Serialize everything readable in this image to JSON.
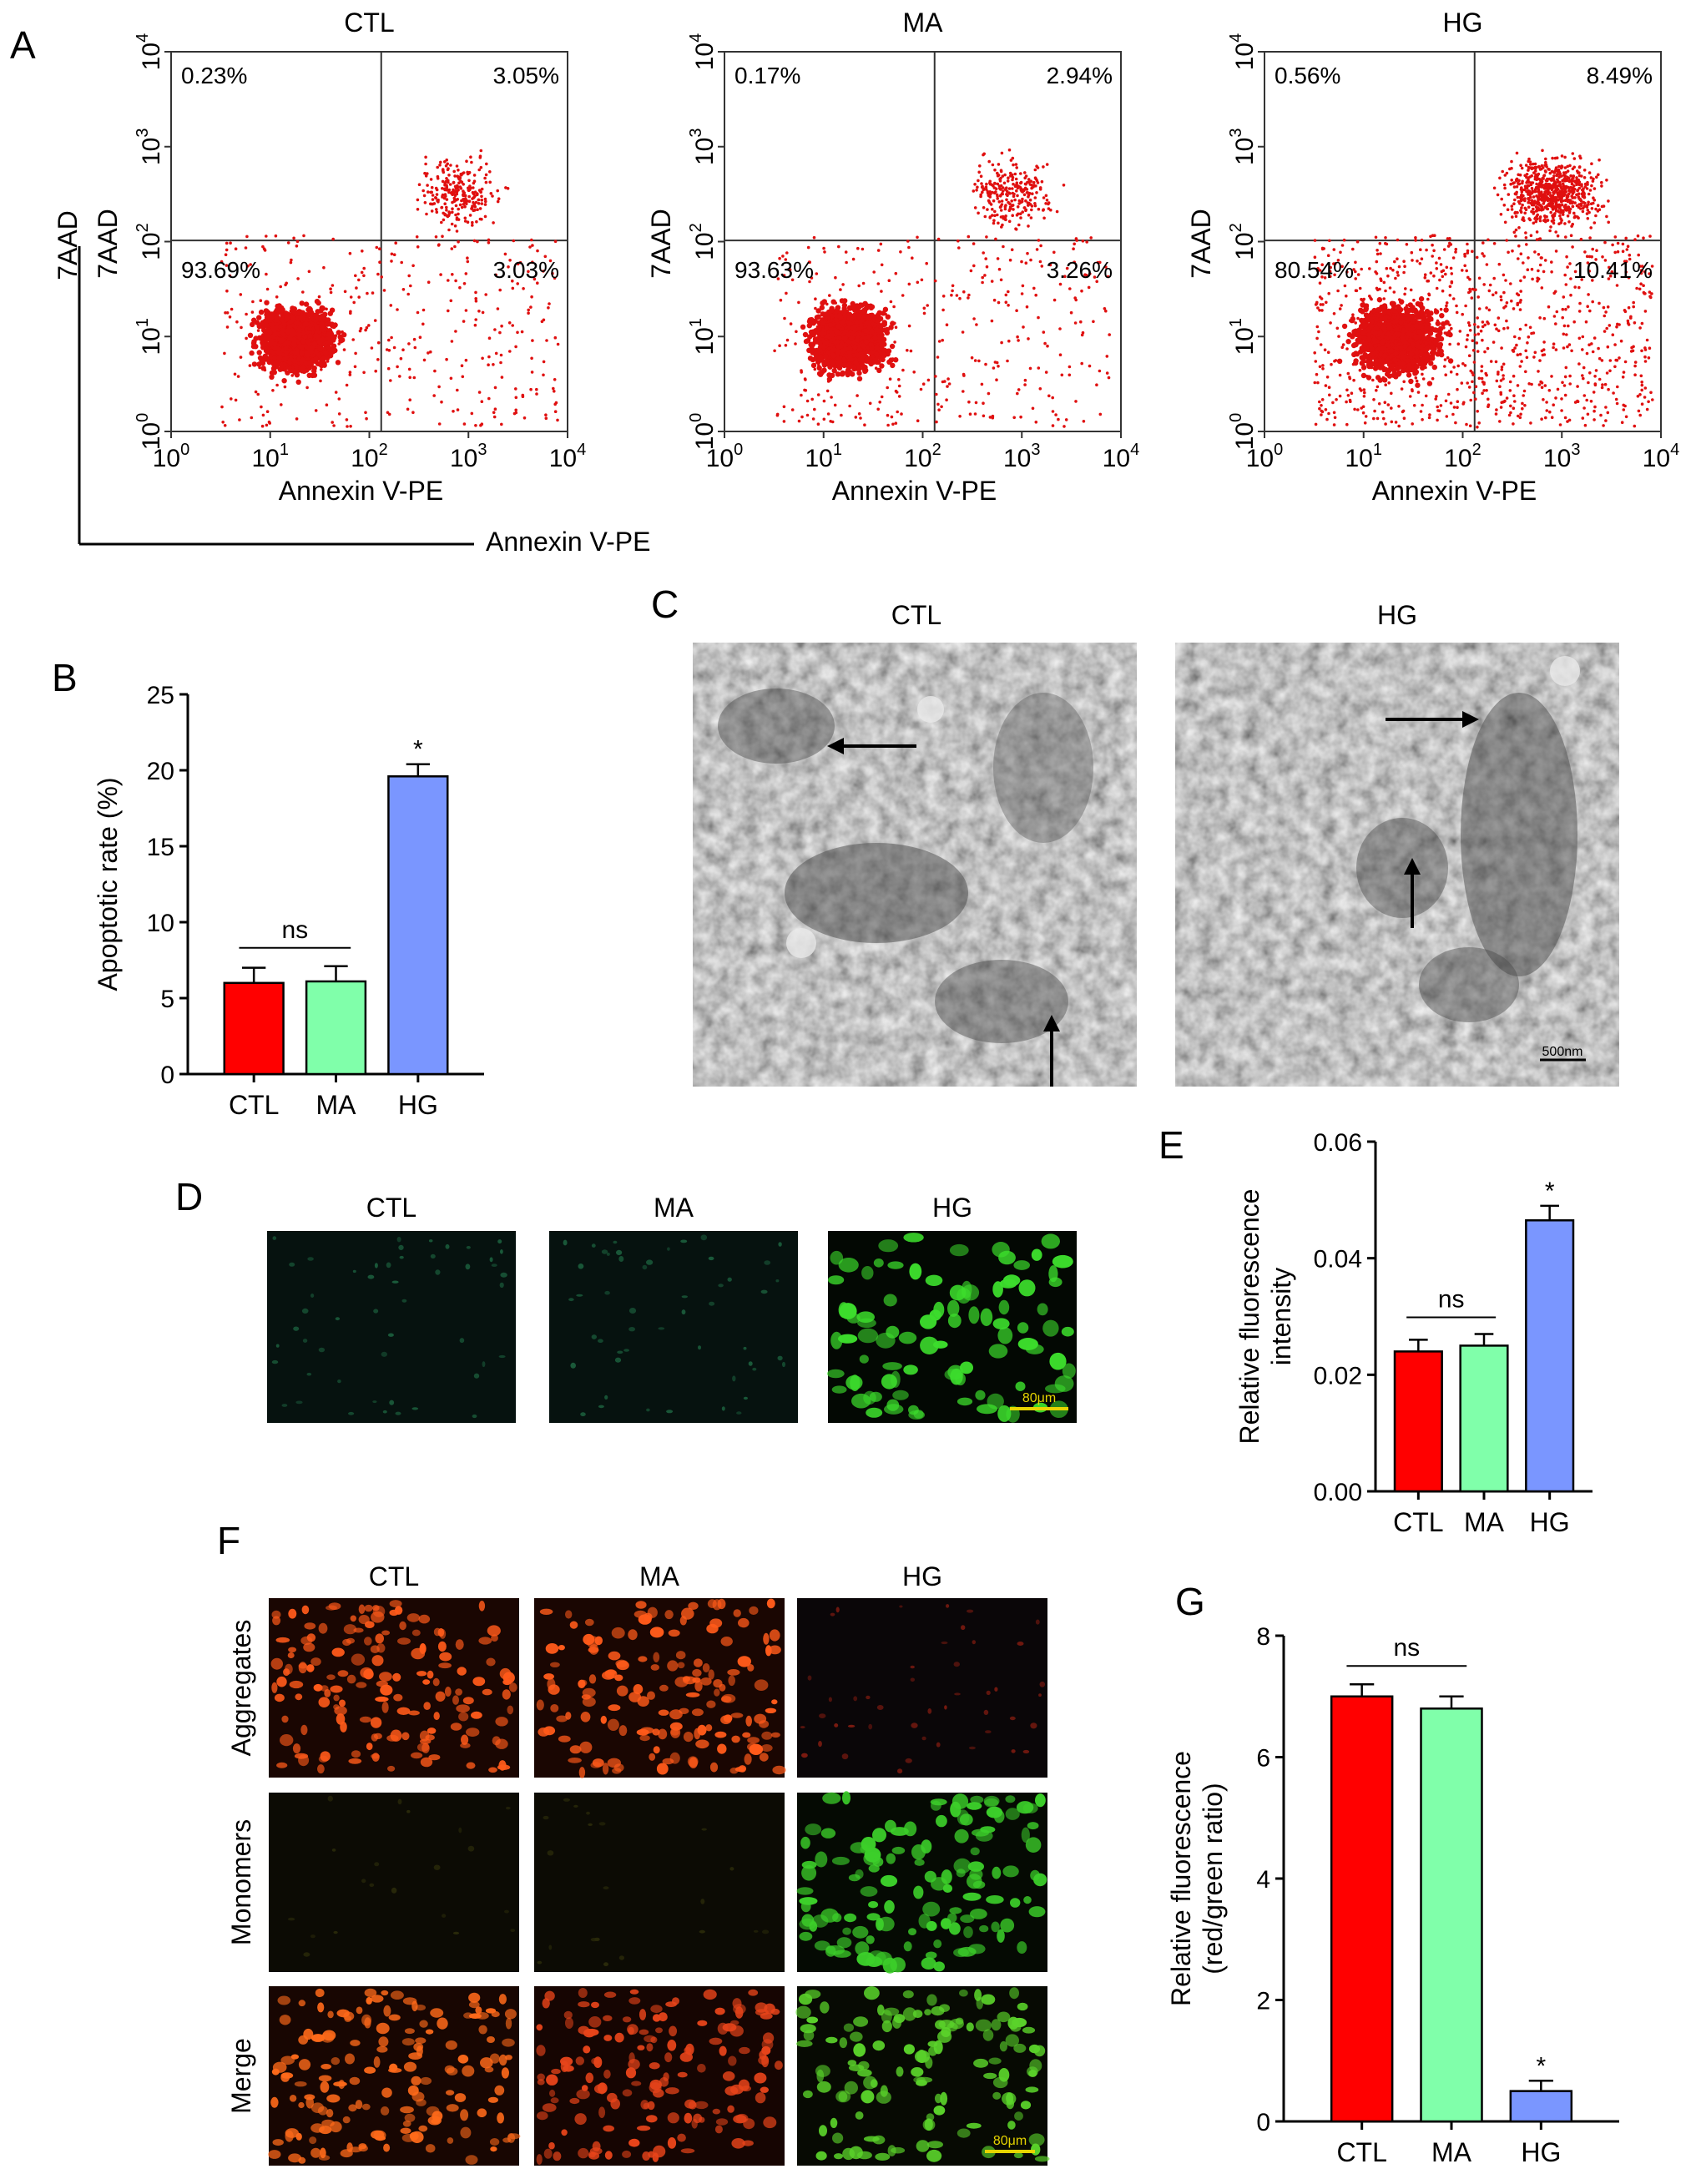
{
  "panel_letters": {
    "A": "A",
    "B": "B",
    "C": "C",
    "D": "D",
    "E": "E",
    "F": "F",
    "G": "G"
  },
  "groups": [
    "CTL",
    "MA",
    "HG"
  ],
  "panel_a": {
    "outer_x_label": "Annexin V-PE",
    "outer_y_label": "7AAD",
    "x_label": "Annexin V-PE",
    "y_label": "7AAD",
    "tick_base": "10",
    "tick_exponents": [
      "0",
      "1",
      "2",
      "3",
      "4"
    ],
    "plots": [
      {
        "title": "CTL",
        "q_ul": "0.23%",
        "q_ur": "3.05%",
        "q_ll": "93.69%",
        "q_lr": "3.03%"
      },
      {
        "title": "MA",
        "q_ul": "0.17%",
        "q_ur": "2.94%",
        "q_ll": "93.63%",
        "q_lr": "3.26%"
      },
      {
        "title": "HG",
        "q_ul": "0.56%",
        "q_ur": "8.49%",
        "q_ll": "80.54%",
        "q_lr": "10.41%"
      }
    ],
    "dot_color": "#e01010"
  },
  "panel_c": {
    "titles": [
      "CTL",
      "HG"
    ],
    "scale_bar": "500nm"
  },
  "panel_d": {
    "titles": [
      "CTL",
      "MA",
      "HG"
    ],
    "scale_bar": "80μm"
  },
  "panel_f": {
    "col_titles": [
      "CTL",
      "MA",
      "HG"
    ],
    "row_labels": [
      "Aggregates",
      "Monomers",
      "Merge"
    ],
    "scale_bar": "80μm"
  },
  "bar_colors": [
    "#ff0000",
    "#80ffaa",
    "#7a96ff"
  ],
  "chart_data": [
    {
      "panel": "B",
      "type": "bar",
      "categories": [
        "CTL",
        "MA",
        "HG"
      ],
      "values": [
        6.0,
        6.1,
        19.6
      ],
      "errors": [
        1.0,
        1.0,
        0.8
      ],
      "ylabel": "Apoptotic rate (%)",
      "ylim": [
        0,
        25
      ],
      "yticks": [
        "0",
        "5",
        "10",
        "15",
        "20",
        "25"
      ],
      "annotations": {
        "bracket": "ns",
        "star": "*"
      }
    },
    {
      "panel": "E",
      "type": "bar",
      "categories": [
        "CTL",
        "MA",
        "HG"
      ],
      "values": [
        0.024,
        0.025,
        0.0465
      ],
      "errors": [
        0.002,
        0.002,
        0.0025
      ],
      "ylabel_line1": "Relative fluorescence",
      "ylabel_line2": "intensity",
      "ylim": [
        0,
        0.06
      ],
      "yticks": [
        "0.00",
        "0.02",
        "0.04",
        "0.06"
      ],
      "annotations": {
        "bracket": "ns",
        "star": "*"
      }
    },
    {
      "panel": "G",
      "type": "bar",
      "categories": [
        "CTL",
        "MA",
        "HG"
      ],
      "values": [
        7.0,
        6.8,
        0.5
      ],
      "errors": [
        0.2,
        0.2,
        0.17
      ],
      "ylabel_line1": "Relative fluorescence",
      "ylabel_line2": "(red/green ratio)",
      "ylim": [
        0,
        8
      ],
      "yticks": [
        "0",
        "2",
        "4",
        "6",
        "8"
      ],
      "annotations": {
        "bracket": "ns",
        "star": "*"
      }
    }
  ]
}
